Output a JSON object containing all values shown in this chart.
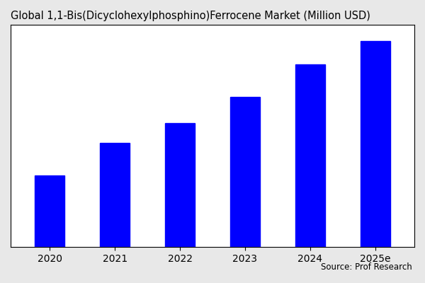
{
  "title": "Global 1,1-Bis(Dicyclohexylphosphino)Ferrocene Market (Million USD)",
  "categories": [
    "2020",
    "2021",
    "2022",
    "2023",
    "2024",
    "2025e"
  ],
  "values": [
    22,
    32,
    38,
    46,
    56,
    63
  ],
  "bar_color": "#0000FF",
  "background_color": "#e8e8e8",
  "plot_background": "#ffffff",
  "source_text": "Source: Prof Research",
  "title_fontsize": 10.5,
  "tick_fontsize": 10,
  "source_fontsize": 8.5,
  "bar_width": 0.45,
  "ylim_max": 68
}
